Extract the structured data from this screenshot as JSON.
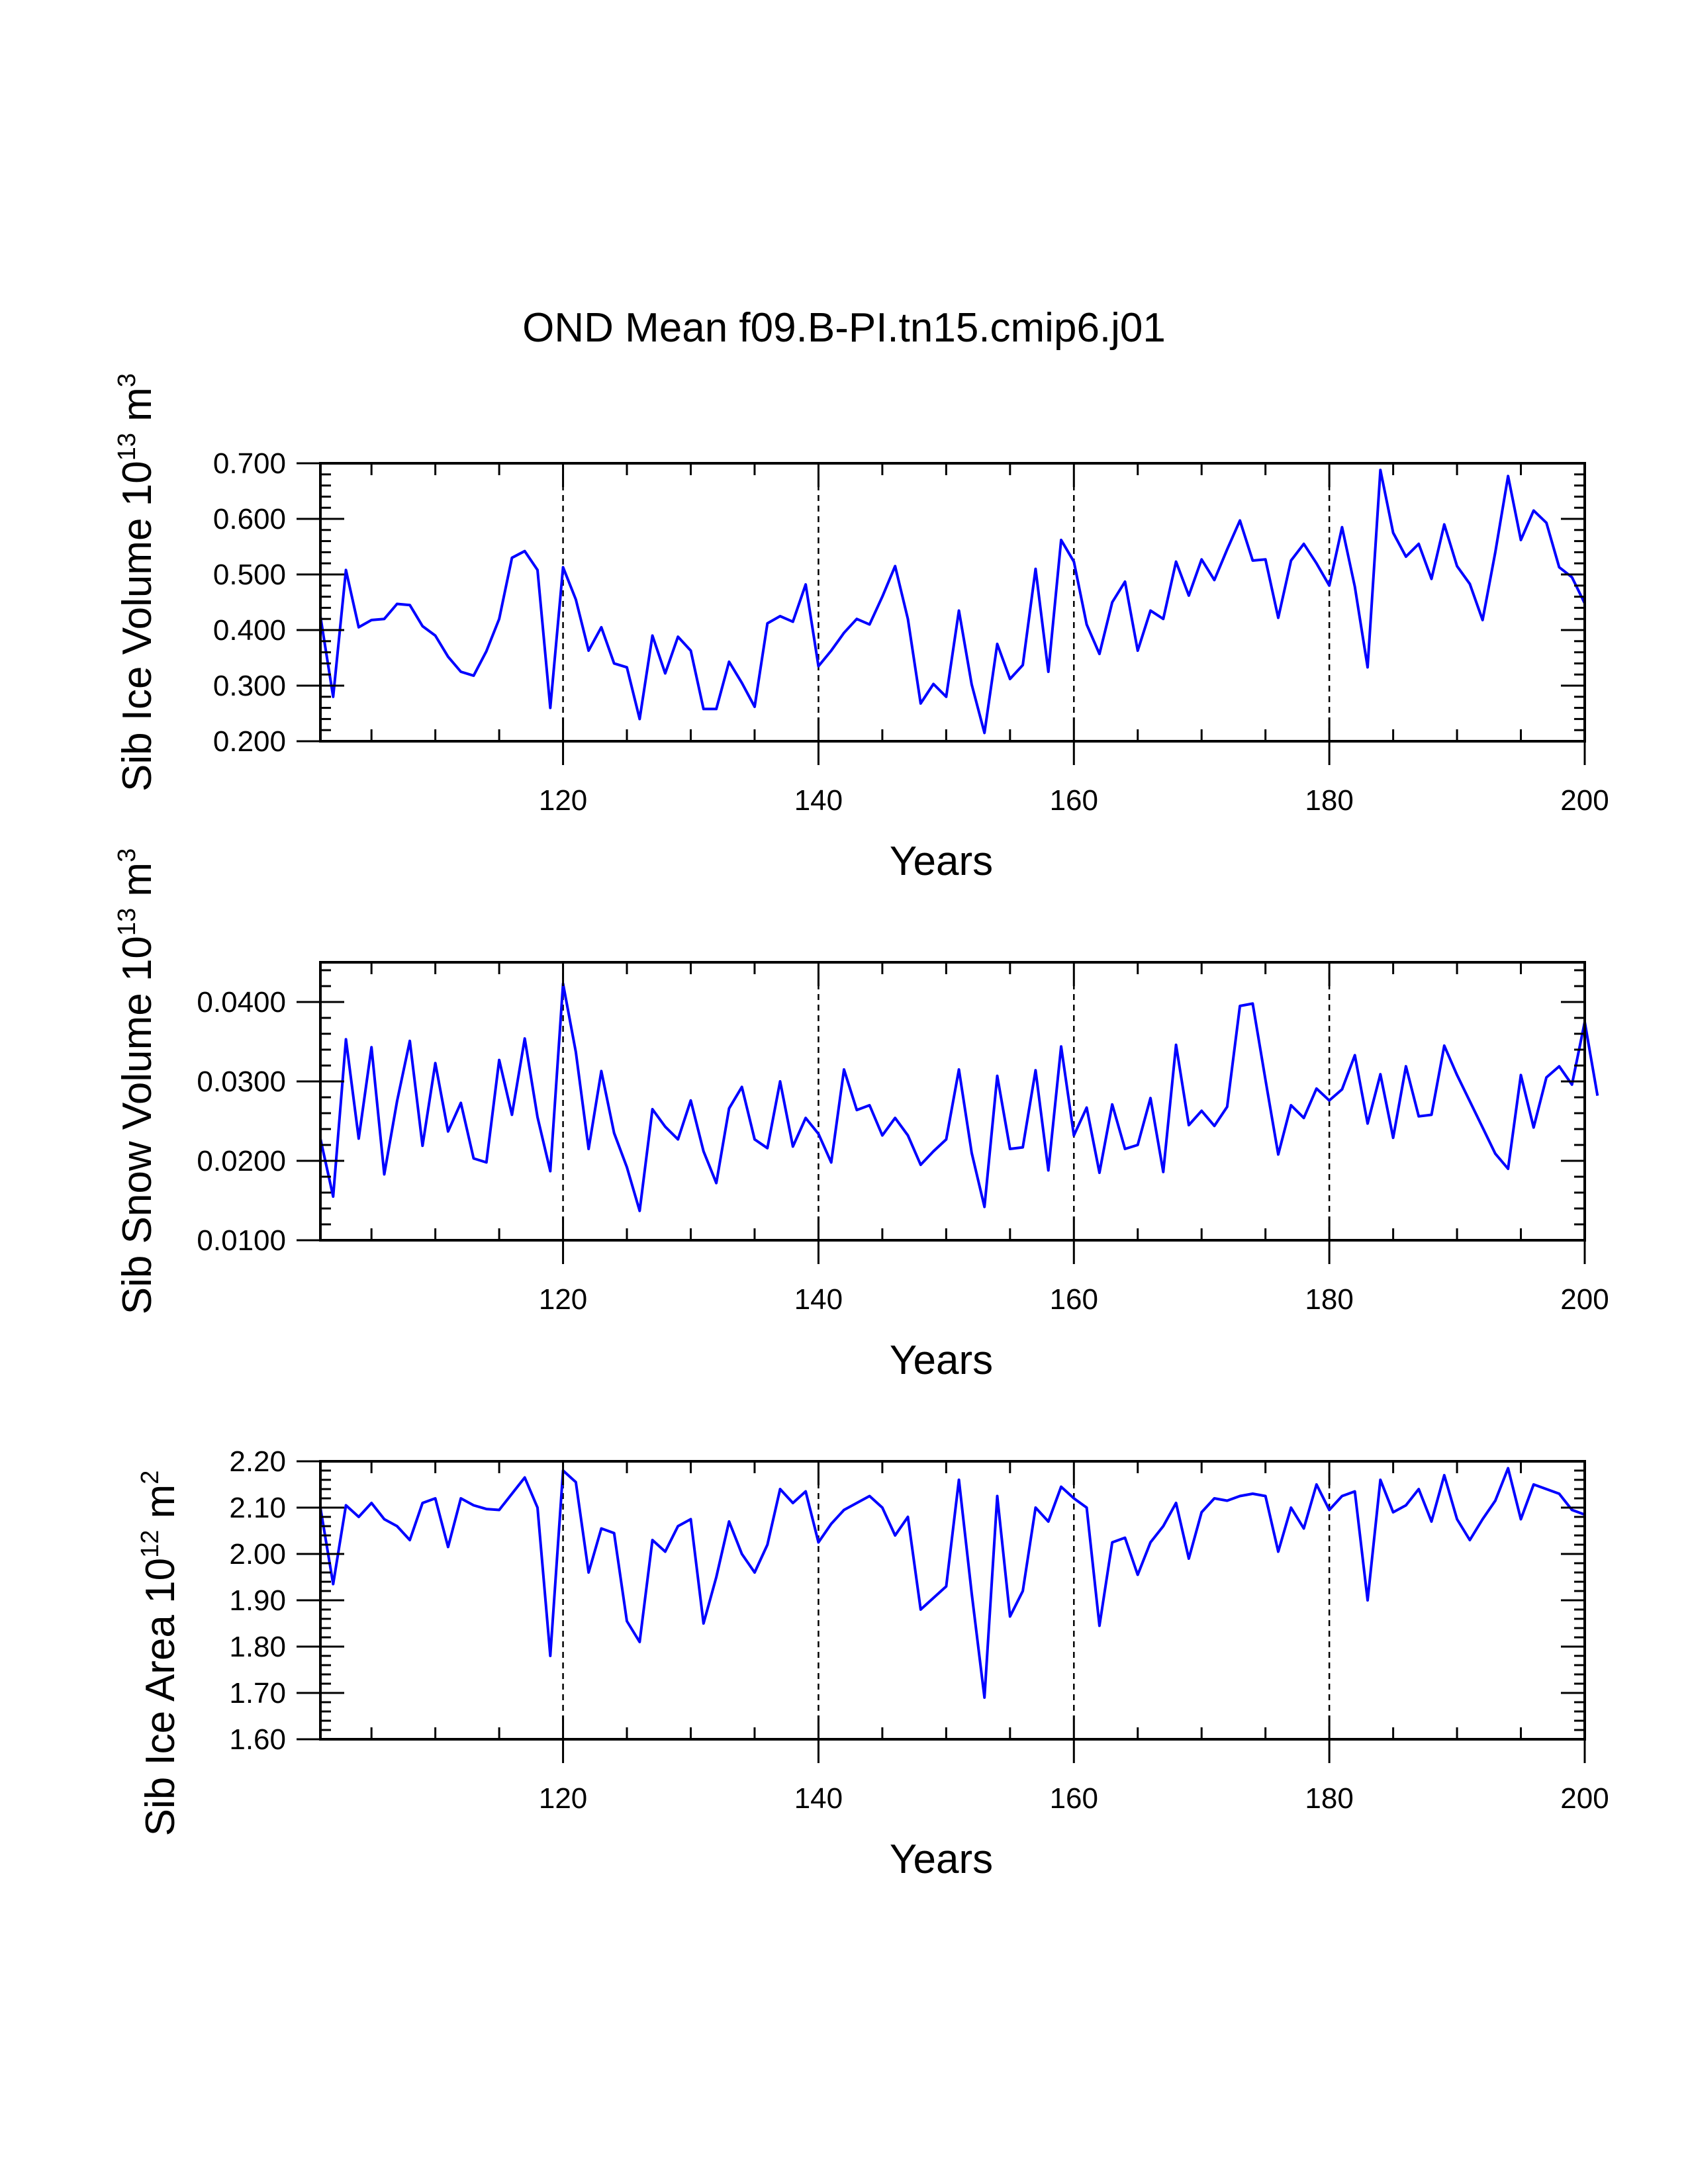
{
  "title": "OND Mean f09.B-PI.tn15.cmip6.j01",
  "line_color": "#0000ff",
  "chart_data": [
    {
      "type": "line",
      "name": "ice-volume",
      "ylabel_parts": [
        "Sib Ice Volume 10",
        "13",
        " m",
        "3"
      ],
      "xlabel": "Years",
      "xlim": [
        101,
        200
      ],
      "ylim": [
        0.2,
        0.7
      ],
      "yticks": [
        0.2,
        0.3,
        0.4,
        0.5,
        0.6,
        0.7
      ],
      "ytick_labels": [
        "0.200",
        "0.300",
        "0.400",
        "0.500",
        "0.600",
        "0.700"
      ],
      "xticks": [
        120,
        140,
        160,
        180,
        200
      ],
      "xtick_labels": [
        "120",
        "140",
        "160",
        "180",
        "200"
      ],
      "x_start": 101,
      "values": [
        0.425,
        0.28,
        0.508,
        0.405,
        0.418,
        0.42,
        0.447,
        0.445,
        0.407,
        0.39,
        0.352,
        0.325,
        0.318,
        0.362,
        0.42,
        0.53,
        0.542,
        0.508,
        0.26,
        0.513,
        0.455,
        0.363,
        0.405,
        0.34,
        0.333,
        0.24,
        0.39,
        0.322,
        0.388,
        0.363,
        0.258,
        0.258,
        0.343,
        0.305,
        0.262,
        0.412,
        0.425,
        0.415,
        0.482,
        0.335,
        0.363,
        0.395,
        0.42,
        0.41,
        0.46,
        0.515,
        0.42,
        0.268,
        0.303,
        0.28,
        0.435,
        0.302,
        0.215,
        0.375,
        0.312,
        0.337,
        0.51,
        0.325,
        0.562,
        0.523,
        0.41,
        0.357,
        0.45,
        0.487,
        0.363,
        0.435,
        0.42,
        0.523,
        0.462,
        0.527,
        0.49,
        0.545,
        0.597,
        0.525,
        0.527,
        0.422,
        0.525,
        0.555,
        0.52,
        0.48,
        0.585,
        0.478,
        0.333,
        0.688,
        0.575,
        0.532,
        0.555,
        0.492,
        0.59,
        0.515,
        0.483,
        0.418,
        0.54,
        0.677,
        0.562,
        0.615,
        0.593,
        0.513,
        0.495,
        0.448
      ]
    },
    {
      "type": "line",
      "name": "snow-volume",
      "ylabel_parts": [
        "Sib Snow Volume 10",
        "13",
        " m",
        "3"
      ],
      "xlabel": "Years",
      "xlim": [
        101,
        200
      ],
      "ylim": [
        0.01,
        0.045
      ],
      "yticks": [
        0.01,
        0.02,
        0.03,
        0.04
      ],
      "ytick_labels": [
        "0.0100",
        "0.0200",
        "0.0300",
        "0.0400"
      ],
      "xticks": [
        120,
        140,
        160,
        180,
        200
      ],
      "xtick_labels": [
        "120",
        "140",
        "160",
        "180",
        "200"
      ],
      "x_start": 101,
      "values": [
        0.0228,
        0.0155,
        0.0353,
        0.0228,
        0.0343,
        0.0183,
        0.0275,
        0.0351,
        0.0219,
        0.0323,
        0.0237,
        0.0273,
        0.0203,
        0.0198,
        0.0327,
        0.0258,
        0.0354,
        0.0255,
        0.0187,
        0.0423,
        0.0337,
        0.0215,
        0.0313,
        0.0235,
        0.0192,
        0.0137,
        0.0265,
        0.0243,
        0.0227,
        0.0276,
        0.0212,
        0.0172,
        0.0266,
        0.0293,
        0.0227,
        0.0216,
        0.03,
        0.0218,
        0.0254,
        0.0234,
        0.0198,
        0.0315,
        0.0264,
        0.027,
        0.0232,
        0.0254,
        0.0232,
        0.0195,
        0.0212,
        0.0227,
        0.0315,
        0.021,
        0.0142,
        0.0307,
        0.0215,
        0.0217,
        0.0314,
        0.0188,
        0.0344,
        0.0232,
        0.0267,
        0.0185,
        0.0271,
        0.0215,
        0.022,
        0.0279,
        0.0186,
        0.0346,
        0.0245,
        0.0263,
        0.0244,
        0.0268,
        0.0395,
        0.0398,
        0.0302,
        0.0208,
        0.027,
        0.0254,
        0.0291,
        0.0276,
        0.029,
        0.0333,
        0.0247,
        0.0309,
        0.0229,
        0.0319,
        0.0256,
        0.0258,
        0.0345,
        0.0308,
        0.0275,
        0.0242,
        0.0209,
        0.019,
        0.0308,
        0.0242,
        0.0305,
        0.0319,
        0.0296,
        0.0375,
        0.0282
      ]
    },
    {
      "type": "line",
      "name": "ice-area",
      "ylabel_parts": [
        "Sib Ice Area 10",
        "12",
        " m",
        "2"
      ],
      "xlabel": "Years",
      "xlim": [
        101,
        200
      ],
      "ylim": [
        1.6,
        2.2
      ],
      "yticks": [
        1.6,
        1.7,
        1.8,
        1.9,
        2.0,
        2.1,
        2.2
      ],
      "ytick_labels": [
        "1.60",
        "1.70",
        "1.80",
        "1.90",
        "2.00",
        "2.10",
        "2.20"
      ],
      "xticks": [
        120,
        140,
        160,
        180,
        200
      ],
      "xtick_labels": [
        "120",
        "140",
        "160",
        "180",
        "200"
      ],
      "x_start": 101,
      "values": [
        2.1,
        1.935,
        2.105,
        2.08,
        2.11,
        2.075,
        2.06,
        2.03,
        2.11,
        2.12,
        2.015,
        2.12,
        2.105,
        2.097,
        2.095,
        2.13,
        2.165,
        2.1,
        1.78,
        2.18,
        2.155,
        1.96,
        2.055,
        2.045,
        1.855,
        1.81,
        2.03,
        2.005,
        2.06,
        2.075,
        1.85,
        1.95,
        2.07,
        2.0,
        1.96,
        2.02,
        2.14,
        2.11,
        2.135,
        2.025,
        2.065,
        2.095,
        2.11,
        2.125,
        2.1,
        2.04,
        2.08,
        1.88,
        1.905,
        1.93,
        2.16,
        1.915,
        1.69,
        2.125,
        1.865,
        1.92,
        2.1,
        2.07,
        2.145,
        2.12,
        2.1,
        1.845,
        2.025,
        2.035,
        1.955,
        2.025,
        2.06,
        2.11,
        1.99,
        2.09,
        2.12,
        2.115,
        2.125,
        2.13,
        2.125,
        2.005,
        2.1,
        2.055,
        2.15,
        2.095,
        2.125,
        2.135,
        1.9,
        2.16,
        2.09,
        2.105,
        2.14,
        2.07,
        2.17,
        2.075,
        2.03,
        2.075,
        2.115,
        2.185,
        2.075,
        2.15,
        2.14,
        2.13,
        2.095,
        2.085
      ]
    }
  ]
}
